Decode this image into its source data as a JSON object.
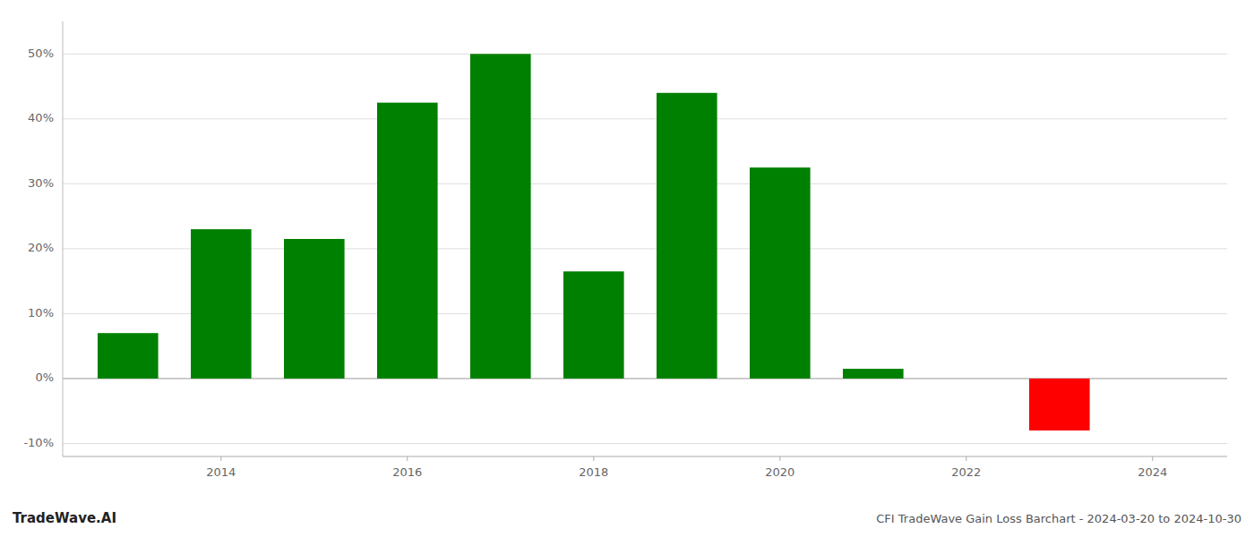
{
  "chart_data": {
    "type": "bar",
    "title": "CFI TradeWave Gain Loss Barchart - 2024-03-20 to 2024-10-30",
    "annotations": [
      "TradeWave.AI"
    ],
    "x": [
      2013,
      2014,
      2015,
      2016,
      2017,
      2018,
      2019,
      2020,
      2021,
      2023
    ],
    "values": [
      7.0,
      23.0,
      21.5,
      42.5,
      50.0,
      16.5,
      44.0,
      32.5,
      1.5,
      -8.0
    ],
    "colors": [
      "#008000",
      "#008000",
      "#008000",
      "#008000",
      "#008000",
      "#008000",
      "#008000",
      "#008000",
      "#008000",
      "#ff0000"
    ],
    "xlim": [
      2012.3,
      2024.8
    ],
    "xticks": [
      2014,
      2016,
      2018,
      2020,
      2022,
      2024
    ],
    "ylim": [
      -12,
      55
    ],
    "yticks": [
      {
        "value": -10,
        "label": "-10%"
      },
      {
        "value": 0,
        "label": "0%"
      },
      {
        "value": 10,
        "label": "10%"
      },
      {
        "value": 20,
        "label": "20%"
      },
      {
        "value": 30,
        "label": "30%"
      },
      {
        "value": 40,
        "label": "40%"
      },
      {
        "value": 50,
        "label": "50%"
      }
    ],
    "grid": true
  }
}
